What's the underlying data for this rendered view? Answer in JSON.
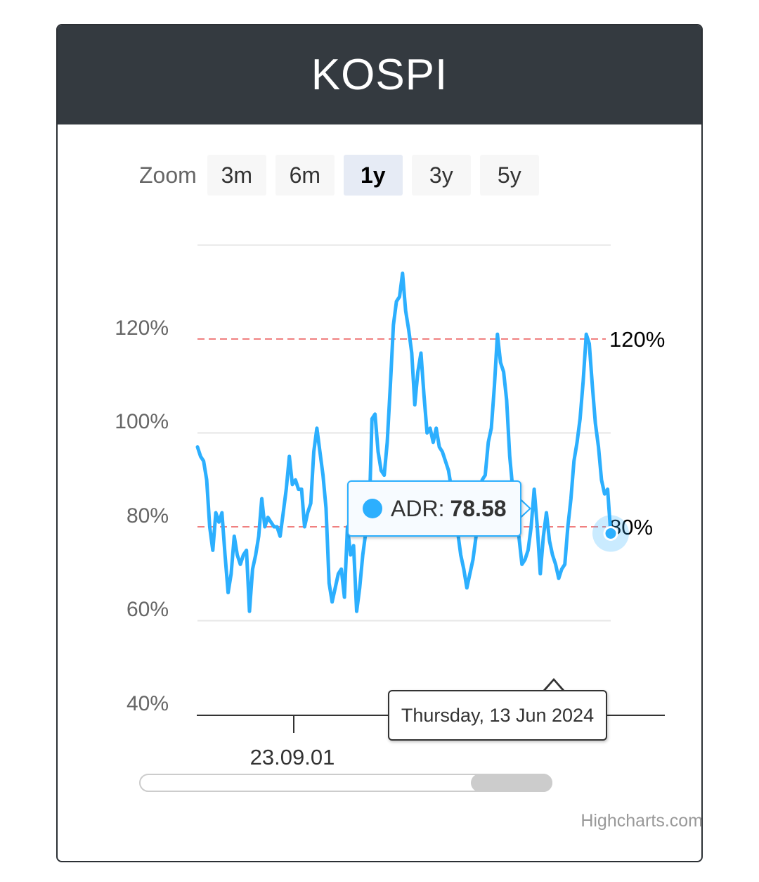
{
  "header": {
    "title": "KOSPI"
  },
  "zoom": {
    "label": "Zoom",
    "buttons": [
      "3m",
      "6m",
      "1y",
      "3y",
      "5y"
    ],
    "selected": "1y"
  },
  "colors": {
    "series": "#2caffe",
    "reference_line": "#f08080",
    "header_bg": "#343a40",
    "grid": "#e6e6e6"
  },
  "chart_data": {
    "type": "line",
    "y_axis": {
      "ticks": [
        "40%",
        "60%",
        "80%",
        "100%",
        "120%"
      ],
      "ylim": [
        40,
        140
      ],
      "grid": true
    },
    "x_axis": {
      "tick_labels": [
        "23.09.01"
      ]
    },
    "plot_lines": [
      {
        "value": 120,
        "label": "120%",
        "style": "dashed"
      },
      {
        "value": 80,
        "label": "80%",
        "style": "dashed"
      }
    ],
    "series": [
      {
        "name": "ADR",
        "values": [
          97,
          95,
          94,
          90,
          80,
          75,
          83,
          81,
          83,
          74,
          66,
          70,
          78,
          74,
          72,
          74,
          75,
          62,
          71,
          74,
          78,
          86,
          80,
          82,
          81,
          80,
          80,
          78,
          83,
          88,
          95,
          89,
          90,
          88,
          88,
          80,
          83,
          85,
          96,
          101,
          96,
          91,
          84,
          68,
          64,
          67,
          70,
          71,
          65,
          80,
          74,
          76,
          62,
          67,
          74,
          79,
          80,
          103,
          104,
          96,
          92,
          91,
          98,
          110,
          123,
          128,
          129,
          134,
          126,
          122,
          117,
          106,
          113,
          117,
          108,
          100,
          101,
          98,
          101,
          97,
          96,
          94,
          92,
          88,
          82,
          79,
          74,
          71,
          67,
          70,
          73,
          78,
          86,
          90,
          91,
          98,
          101,
          110,
          121,
          115,
          113,
          107,
          95,
          88,
          79,
          78,
          72,
          73,
          75,
          80,
          88,
          80,
          70,
          78,
          83,
          77,
          74,
          72,
          69,
          71,
          72,
          80,
          86,
          94,
          98,
          103,
          111,
          121,
          119,
          110,
          102,
          97,
          90,
          87,
          88,
          78.58
        ]
      }
    ],
    "tooltip": {
      "series": "ADR",
      "label": "ADR:",
      "value": "78.58",
      "date": "Thursday, 13 Jun 2024"
    }
  },
  "navigator": {
    "visible_range": "last portion"
  },
  "credit": "Highcharts.com"
}
